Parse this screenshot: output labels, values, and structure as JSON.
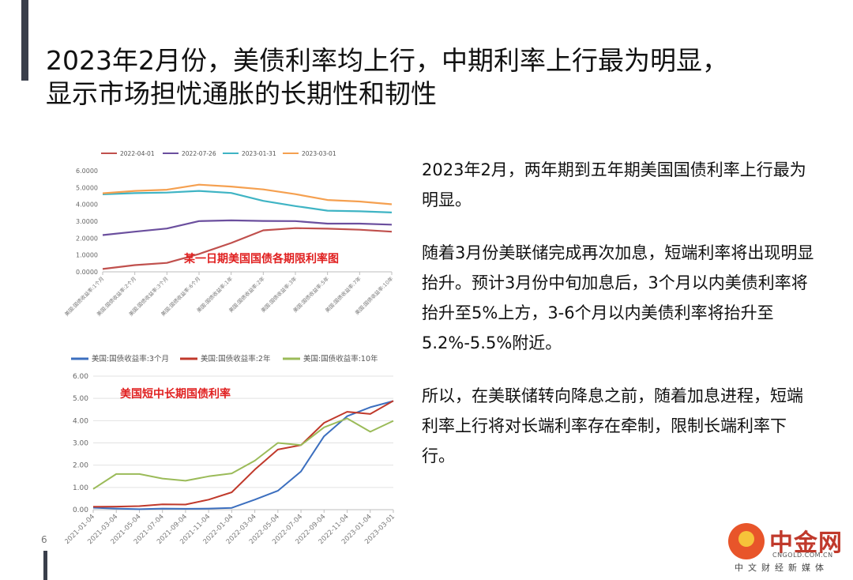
{
  "page": {
    "title_line1": "2023年2月份，美债利率均上行，中期利率上行最为明显，",
    "title_line2": "显示市场担忧通胀的长期性和韧性",
    "paragraphs": [
      "2023年2月，两年期到五年期美国国债利率上行最为明显。",
      "随着3月份美联储完成再次加息，短端利率将出现明显抬升。预计3月份中旬加息后，3个月以内美债利率将抬升至5%上方，3-6个月以内美债利率将抬升至5.2%-5.5%附近。",
      "所以，在美联储转向降息之前，随着加息进程，短端利率上行将对长端利率存在牵制，限制长端利率下行。"
    ],
    "page_number": "6",
    "logo": {
      "name": "中金网",
      "url": "CNGOLD.COM.CN",
      "sub": "中文财经新媒体"
    }
  },
  "chart_data": [
    {
      "type": "line",
      "title": "某一日期美国国债各期限利率图",
      "title_color": "#e02020",
      "categories": [
        "美国:国债收益率:1个月",
        "美国:国债收益率:2个月",
        "美国:国债收益率:3个月",
        "美国:国债收益率:6个月",
        "美国:国债收益率:1年",
        "美国:国债收益率:2年",
        "美国:国债收益率:3年",
        "美国:国债收益率:5年",
        "美国:国债收益率:7年",
        "美国:国债收益率:10年"
      ],
      "series": [
        {
          "name": "2022-04-01",
          "color": "#c0504d",
          "values": [
            0.17,
            0.4,
            0.53,
            1.06,
            1.71,
            2.46,
            2.59,
            2.56,
            2.5,
            2.38
          ]
        },
        {
          "name": "2022-07-26",
          "color": "#6b4f9e",
          "values": [
            2.18,
            2.38,
            2.57,
            3.01,
            3.05,
            3.02,
            3.01,
            2.86,
            2.86,
            2.8
          ]
        },
        {
          "name": "2023-01-31",
          "color": "#3fb4c4",
          "values": [
            4.6,
            4.67,
            4.7,
            4.8,
            4.68,
            4.21,
            3.9,
            3.63,
            3.59,
            3.52
          ]
        },
        {
          "name": "2023-03-01",
          "color": "#f5a050",
          "values": [
            4.66,
            4.8,
            4.87,
            5.17,
            5.06,
            4.89,
            4.61,
            4.26,
            4.17,
            4.01
          ]
        }
      ],
      "ylim": [
        0,
        6
      ],
      "yticks": [
        "0.0000",
        "1.0000",
        "2.0000",
        "3.0000",
        "4.0000",
        "5.0000",
        "6.0000"
      ],
      "legend_position": "top"
    },
    {
      "type": "line",
      "title": "美国短中长期国债利率",
      "title_color": "#e02020",
      "x": [
        "2021-01-04",
        "2021-03-04",
        "2021-05-04",
        "2021-07-04",
        "2021-09-04",
        "2021-11-04",
        "2022-01-04",
        "2022-03-04",
        "2022-05-04",
        "2022-07-04",
        "2022-09-04",
        "2022-11-04",
        "2023-01-04",
        "2023-03-01"
      ],
      "series": [
        {
          "name": "美国:国债收益率:3个月",
          "color": "#3c6fbf",
          "values": [
            0.09,
            0.05,
            0.02,
            0.05,
            0.04,
            0.05,
            0.08,
            0.45,
            0.85,
            1.72,
            3.3,
            4.2,
            4.6,
            4.88
          ]
        },
        {
          "name": "美国:国债收益率:2年",
          "color": "#c0392b",
          "values": [
            0.13,
            0.14,
            0.16,
            0.24,
            0.23,
            0.45,
            0.78,
            1.8,
            2.7,
            2.9,
            3.9,
            4.4,
            4.3,
            4.89
          ]
        },
        {
          "name": "美国:国债收益率:10年",
          "color": "#9bbb59",
          "values": [
            0.93,
            1.6,
            1.6,
            1.4,
            1.3,
            1.5,
            1.63,
            2.2,
            3.0,
            2.9,
            3.7,
            4.1,
            3.5,
            3.99
          ]
        }
      ],
      "ylim": [
        0,
        6
      ],
      "yticks": [
        "0.00",
        "1.00",
        "2.00",
        "3.00",
        "4.00",
        "5.00",
        "6.00"
      ],
      "legend_position": "top"
    }
  ]
}
